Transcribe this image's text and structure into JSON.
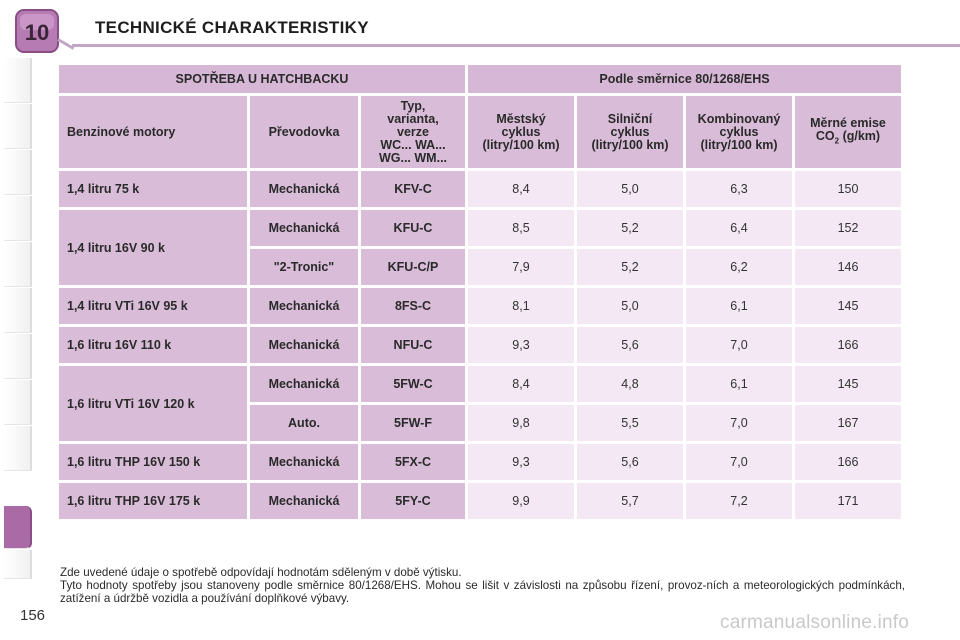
{
  "header": {
    "chapter_number": "10",
    "title": "TECHNICKÉ CHARAKTERISTIKY"
  },
  "table": {
    "group_left": "SPOTŘEBA U HATCHBACKU",
    "group_right": "Podle směrnice 80/1268/EHS",
    "columns": {
      "engine": "Benzinové motory",
      "gearbox": "Převodovka",
      "type_lines": [
        "Typ,",
        "varianta,",
        "verze",
        "WC... WA...",
        "WG... WM..."
      ],
      "urban_lines": [
        "Městský",
        "cyklus",
        "(litry/100 km)"
      ],
      "extra_lines": [
        "Silniční",
        "cyklus",
        "(litry/100 km)"
      ],
      "combined_lines": [
        "Kombinovaný",
        "cyklus",
        "(litry/100 km)"
      ],
      "co2_line1": "Měrné emise",
      "co2_co": "CO",
      "co2_sub": "2",
      "co2_unit": " (g/km)"
    },
    "groups": [
      {
        "engine": "1,4 litru 75 k",
        "rows": [
          {
            "gearbox": "Mechanická",
            "type": "KFV-C",
            "urban": "8,4",
            "extra": "5,0",
            "combined": "6,3",
            "co2": "150"
          }
        ]
      },
      {
        "engine": "1,4 litru 16V 90 k",
        "rows": [
          {
            "gearbox": "Mechanická",
            "type": "KFU-C",
            "urban": "8,5",
            "extra": "5,2",
            "combined": "6,4",
            "co2": "152"
          },
          {
            "gearbox": "\"2-Tronic\"",
            "type": "KFU-C/P",
            "urban": "7,9",
            "extra": "5,2",
            "combined": "6,2",
            "co2": "146"
          }
        ]
      },
      {
        "engine": "1,4 litru VTi 16V 95 k",
        "rows": [
          {
            "gearbox": "Mechanická",
            "type": "8FS-C",
            "urban": "8,1",
            "extra": "5,0",
            "combined": "6,1",
            "co2": "145"
          }
        ]
      },
      {
        "engine": "1,6 litru 16V 110 k",
        "rows": [
          {
            "gearbox": "Mechanická",
            "type": "NFU-C",
            "urban": "9,3",
            "extra": "5,6",
            "combined": "7,0",
            "co2": "166"
          }
        ]
      },
      {
        "engine": "1,6 litru VTi 16V 120 k",
        "rows": [
          {
            "gearbox": "Mechanická",
            "type": "5FW-C",
            "urban": "8,4",
            "extra": "4,8",
            "combined": "6,1",
            "co2": "145"
          },
          {
            "gearbox": "Auto.",
            "type": "5FW-F",
            "urban": "9,8",
            "extra": "5,5",
            "combined": "7,0",
            "co2": "167"
          }
        ]
      },
      {
        "engine": "1,6 litru THP 16V 150 k",
        "rows": [
          {
            "gearbox": "Mechanická",
            "type": "5FX-C",
            "urban": "9,3",
            "extra": "5,6",
            "combined": "7,0",
            "co2": "166"
          }
        ]
      },
      {
        "engine": "1,6 litru THP 16V 175 k",
        "rows": [
          {
            "gearbox": "Mechanická",
            "type": "5FY-C",
            "urban": "9,9",
            "extra": "5,7",
            "combined": "7,2",
            "co2": "171"
          }
        ]
      }
    ]
  },
  "notes": {
    "line1": "Zde uvedené údaje o spotřebě odpovídají hodnotám sděleným v době výtisku.",
    "line2": "Tyto hodnoty spotřeby jsou stanoveny podle směrnice 80/1268/EHS. Mohou se lišit v závislosti na způsobu řízení, provoz-ních a meteorologických podmínkách, zatížení a údržbě vozidla a používání doplňkové výbavy."
  },
  "page_number": "156",
  "watermark": "carmanualsonline.info",
  "colors": {
    "accent": "#a96aa5",
    "header_cell": "#d8bcd8",
    "value_cell": "#f3e8f3"
  }
}
